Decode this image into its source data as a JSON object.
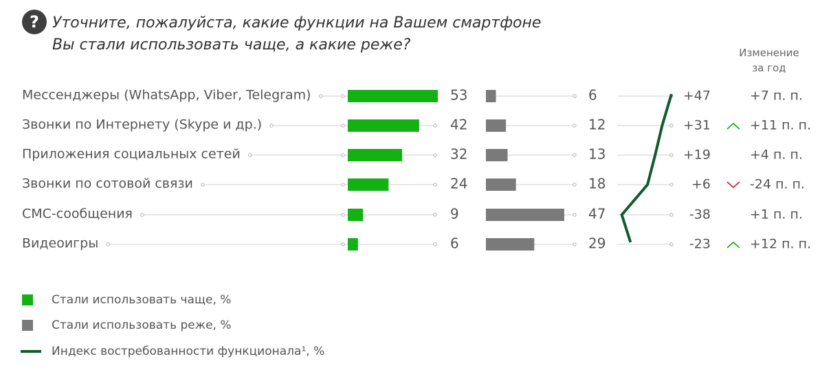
{
  "header": {
    "question_icon": "?",
    "title_line1": "Уточните, пожалуйста, какие функции на Вашем смартфоне",
    "title_line2": "Вы стали использовать чаще, а какие реже?",
    "change_head_line1": "Изменение",
    "change_head_line2": "за год"
  },
  "colors": {
    "more": "#13b113",
    "less": "#7a7a7a",
    "index": "#0f5c2e",
    "up": "#13b113",
    "down": "#e0242c",
    "track": "#cfcfcf"
  },
  "chart_data": {
    "type": "bar",
    "categories": [
      "Мессенджеры (WhatsApp, Viber, Telegram)",
      "Звонки по Интернету (Skype и др.)",
      "Приложения социальных сетей",
      "Звонки по сотовой связи",
      "СМС-сообщения",
      "Видеоигры"
    ],
    "series": [
      {
        "name": "Стали использовать чаще, %",
        "values": [
          53,
          42,
          32,
          24,
          9,
          6
        ]
      },
      {
        "name": "Стали использовать реже, %",
        "values": [
          6,
          12,
          13,
          18,
          47,
          29
        ]
      },
      {
        "name": "Индекс востребованности функционала¹, %",
        "values": [
          47,
          31,
          19,
          6,
          -38,
          -23
        ]
      }
    ],
    "index_labels": [
      "+47",
      "+31",
      "+19",
      "+6",
      "-38",
      "-23"
    ],
    "change_labels": [
      "+7 п. п.",
      "+11 п. п.",
      "+4 п. п.",
      "-24 п. п.",
      "+1 п. п.",
      "+12 п. п."
    ],
    "change_arrows": [
      "none",
      "up",
      "none",
      "down",
      "none",
      "up"
    ]
  },
  "legend": [
    {
      "kind": "box",
      "color_key": "more",
      "label": "Стали использовать чаще, %"
    },
    {
      "kind": "box",
      "color_key": "less",
      "label": "Стали использовать реже, %"
    },
    {
      "kind": "line",
      "color_key": "index",
      "label": "Индекс востребованности функционала¹, %"
    }
  ]
}
